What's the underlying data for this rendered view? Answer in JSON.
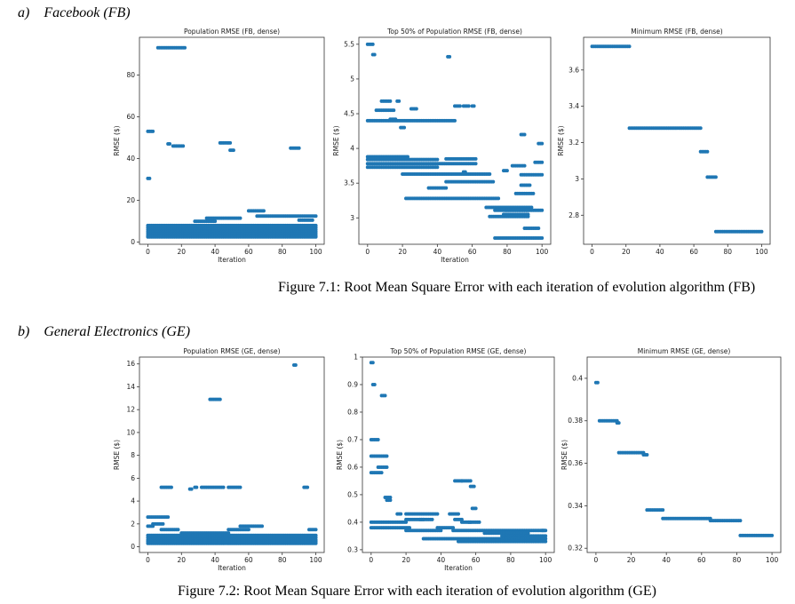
{
  "sections": [
    {
      "label": "a)",
      "name": "Facebook (FB)",
      "caption": "Figure 7.1: Root Mean Square Error with each iteration of evolution algorithm (FB)"
    },
    {
      "label": "b)",
      "name": "General Electronics (GE)",
      "caption": "Figure 7.2: Root Mean Square Error with each iteration of evolution algorithm (GE)"
    }
  ],
  "colors": {
    "point": "#1f77b4",
    "axis": "#333333"
  },
  "chart_data": [
    {
      "type": "scatter",
      "title": "Population RMSE (FB, dense)",
      "xlabel": "Iteration",
      "ylabel": "RMSE ($)",
      "xlim": [
        -5,
        105
      ],
      "ylim": [
        -1,
        98
      ],
      "xticks": [
        0,
        20,
        40,
        60,
        80,
        100
      ],
      "yticks": [
        0,
        20,
        40,
        60,
        80
      ],
      "series": [
        {
          "segments": [
            [
              6,
              22,
              93
            ],
            [
              0,
              3,
              53
            ],
            [
              12,
              13,
              47
            ],
            [
              15,
              21,
              46
            ],
            [
              43,
              49,
              47.5
            ],
            [
              49,
              51,
              44
            ],
            [
              85,
              90,
              45
            ],
            [
              0,
              1,
              30.5
            ],
            [
              60,
              69,
              15
            ],
            [
              65,
              100,
              12.5
            ],
            [
              35,
              55,
              11.5
            ],
            [
              28,
              40,
              10
            ],
            [
              90,
              98,
              10.5
            ],
            [
              0,
              100,
              8
            ],
            [
              0,
              100,
              7
            ],
            [
              0,
              100,
              6
            ],
            [
              0,
              100,
              5
            ],
            [
              0,
              100,
              4
            ],
            [
              0,
              100,
              3
            ],
            [
              0,
              100,
              2.5
            ]
          ]
        }
      ]
    },
    {
      "type": "scatter",
      "title": "Top 50% of Population RMSE (FB, dense)",
      "xlabel": "Iteration",
      "ylabel": "RMSE ($)",
      "xlim": [
        -5,
        105
      ],
      "ylim": [
        2.62,
        5.6
      ],
      "xticks": [
        0,
        20,
        40,
        60,
        80,
        100
      ],
      "yticks": [
        3.0,
        3.5,
        4.0,
        4.5,
        5.0,
        5.5
      ],
      "series": [
        {
          "segments": [
            [
              0,
              3,
              5.5
            ],
            [
              3,
              4,
              5.35
            ],
            [
              46,
              47,
              5.32
            ],
            [
              8,
              13,
              4.68
            ],
            [
              17,
              18,
              4.68
            ],
            [
              5,
              15,
              4.55
            ],
            [
              25,
              28,
              4.57
            ],
            [
              50,
              53,
              4.61
            ],
            [
              55,
              58,
              4.61
            ],
            [
              60,
              61,
              4.61
            ],
            [
              0,
              37,
              4.4
            ],
            [
              38,
              50,
              4.4
            ],
            [
              13,
              16,
              4.42
            ],
            [
              19,
              21,
              4.3
            ],
            [
              0,
              23,
              3.88
            ],
            [
              0,
              40,
              3.84
            ],
            [
              45,
              62,
              3.85
            ],
            [
              0,
              37,
              3.78
            ],
            [
              0,
              40,
              3.73
            ],
            [
              38,
              62,
              3.78
            ],
            [
              20,
              70,
              3.63
            ],
            [
              55,
              56,
              3.66
            ],
            [
              35,
              45,
              3.43
            ],
            [
              45,
              72,
              3.52
            ],
            [
              22,
              75,
              3.28
            ],
            [
              68,
              94,
              3.15
            ],
            [
              73,
              92,
              3.11
            ],
            [
              78,
              92,
              3.05
            ],
            [
              70,
              92,
              3.02
            ],
            [
              79,
              100,
              3.11
            ],
            [
              85,
              95,
              3.35
            ],
            [
              88,
              93,
              3.47
            ],
            [
              88,
              100,
              3.62
            ],
            [
              83,
              90,
              3.75
            ],
            [
              78,
              80,
              3.68
            ],
            [
              96,
              100,
              3.8
            ],
            [
              88,
              90,
              4.2
            ],
            [
              98,
              100,
              4.07
            ],
            [
              90,
              98,
              2.85
            ],
            [
              73,
              100,
              2.71
            ]
          ]
        }
      ]
    },
    {
      "type": "scatter",
      "title": "Minimum RMSE (FB, dense)",
      "xlabel": "",
      "ylabel": "RMSE ($)",
      "xlim": [
        -5,
        105
      ],
      "ylim": [
        2.64,
        3.78
      ],
      "xticks": [
        0,
        20,
        40,
        60,
        80,
        100
      ],
      "yticks": [
        2.8,
        3.0,
        3.2,
        3.4,
        3.6
      ],
      "series": [
        {
          "segments": [
            [
              0,
              22,
              3.73
            ],
            [
              22,
              64,
              3.28
            ],
            [
              64,
              68,
              3.15
            ],
            [
              68,
              73,
              3.01
            ],
            [
              73,
              100,
              2.71
            ]
          ]
        }
      ]
    },
    {
      "type": "scatter",
      "title": "Population RMSE (GE, dense)",
      "xlabel": "Iteration",
      "ylabel": "RMSE ($)",
      "xlim": [
        -5,
        105
      ],
      "ylim": [
        -0.5,
        16.6
      ],
      "xticks": [
        0,
        20,
        40,
        60,
        80,
        100
      ],
      "yticks": [
        0,
        2,
        4,
        6,
        8,
        10,
        12,
        14,
        16
      ],
      "series": [
        {
          "segments": [
            [
              87,
              88,
              15.9
            ],
            [
              37,
              43,
              12.9
            ],
            [
              8,
              14,
              5.2
            ],
            [
              25,
              26,
              5.05
            ],
            [
              28,
              29,
              5.2
            ],
            [
              32,
              45,
              5.2
            ],
            [
              48,
              55,
              5.2
            ],
            [
              93,
              95,
              5.2
            ],
            [
              0,
              12,
              2.6
            ],
            [
              3,
              9,
              2.0
            ],
            [
              0,
              3,
              1.8
            ],
            [
              48,
              60,
              1.5
            ],
            [
              55,
              68,
              1.8
            ],
            [
              8,
              18,
              1.5
            ],
            [
              20,
              48,
              1.2
            ],
            [
              0,
              100,
              1.0
            ],
            [
              96,
              100,
              1.5
            ],
            [
              0,
              100,
              0.8
            ],
            [
              0,
              100,
              0.6
            ],
            [
              0,
              100,
              0.45
            ],
            [
              0,
              100,
              0.3
            ]
          ]
        }
      ]
    },
    {
      "type": "scatter",
      "title": "Top 50% of Population RMSE (GE, dense)",
      "xlabel": "Iteration",
      "ylabel": "RMSE ($)",
      "xlim": [
        -5,
        105
      ],
      "ylim": [
        0.29,
        1.0
      ],
      "xticks": [
        0,
        20,
        40,
        60,
        80,
        100
      ],
      "yticks": [
        0.3,
        0.4,
        0.5,
        0.6,
        0.7,
        0.8,
        0.9,
        1.0
      ],
      "series": [
        {
          "segments": [
            [
              0,
              1,
              0.98
            ],
            [
              1,
              2,
              0.9
            ],
            [
              6,
              8,
              0.86
            ],
            [
              0,
              4,
              0.7
            ],
            [
              0,
              9,
              0.64
            ],
            [
              0,
              6,
              0.58
            ],
            [
              4,
              9,
              0.6
            ],
            [
              8,
              11,
              0.49
            ],
            [
              9,
              11,
              0.48
            ],
            [
              15,
              17,
              0.43
            ],
            [
              20,
              38,
              0.43
            ],
            [
              23,
              35,
              0.41
            ],
            [
              20,
              22,
              0.41
            ],
            [
              28,
              30,
              0.41
            ],
            [
              48,
              52,
              0.55
            ],
            [
              52,
              57,
              0.55
            ],
            [
              57,
              59,
              0.53
            ],
            [
              58,
              60,
              0.45
            ],
            [
              45,
              50,
              0.43
            ],
            [
              48,
              52,
              0.41
            ],
            [
              52,
              57,
              0.4
            ],
            [
              56,
              62,
              0.4
            ],
            [
              0,
              20,
              0.4
            ],
            [
              0,
              22,
              0.38
            ],
            [
              20,
              40,
              0.37
            ],
            [
              38,
              47,
              0.38
            ],
            [
              47,
              100,
              0.37
            ],
            [
              65,
              90,
              0.36
            ],
            [
              75,
              100,
              0.35
            ],
            [
              30,
              100,
              0.34
            ],
            [
              50,
              100,
              0.33
            ],
            [
              98,
              99,
              0.37
            ]
          ]
        }
      ]
    },
    {
      "type": "scatter",
      "title": "Minimum RMSE (GE, dense)",
      "xlabel": "",
      "ylabel": "RMSE ($)",
      "xlim": [
        -5,
        105
      ],
      "ylim": [
        0.318,
        0.41
      ],
      "xticks": [
        0,
        20,
        40,
        60,
        80,
        100
      ],
      "yticks": [
        0.32,
        0.34,
        0.36,
        0.38,
        0.4
      ],
      "series": [
        {
          "segments": [
            [
              0,
              1,
              0.398
            ],
            [
              2,
              12,
              0.38
            ],
            [
              12,
              13,
              0.379
            ],
            [
              13,
              27,
              0.365
            ],
            [
              27,
              29,
              0.364
            ],
            [
              29,
              38,
              0.338
            ],
            [
              38,
              65,
              0.334
            ],
            [
              65,
              82,
              0.333
            ],
            [
              82,
              100,
              0.326
            ]
          ]
        }
      ]
    }
  ]
}
